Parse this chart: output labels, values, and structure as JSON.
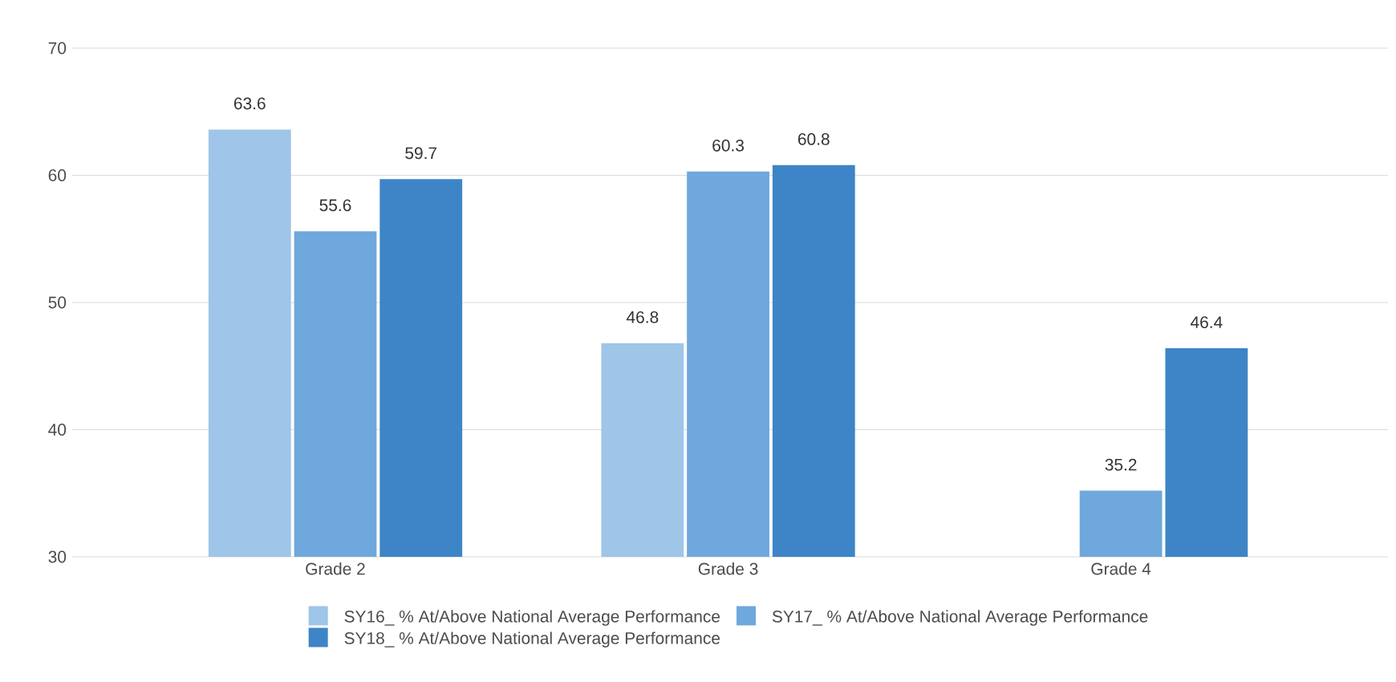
{
  "chart_data": {
    "type": "bar",
    "categories": [
      "Grade 2",
      "Grade 3",
      "Grade 4"
    ],
    "series": [
      {
        "name": "SY16_ % At/Above National Average Performance",
        "color": "#9fc5e8",
        "values": [
          63.6,
          46.8,
          null
        ]
      },
      {
        "name": "SY17_ % At/Above National Average Performance",
        "color": "#6fa8dc",
        "values": [
          55.6,
          60.3,
          35.2
        ]
      },
      {
        "name": "SY18_ % At/Above National Average Performance",
        "color": "#3d85c6",
        "values": [
          59.7,
          60.8,
          46.4
        ]
      }
    ],
    "ylim": [
      30,
      70
    ],
    "yticks": [
      30,
      40,
      50,
      60,
      70
    ],
    "grid": "y",
    "legend": "bottom",
    "data_labels": true
  }
}
